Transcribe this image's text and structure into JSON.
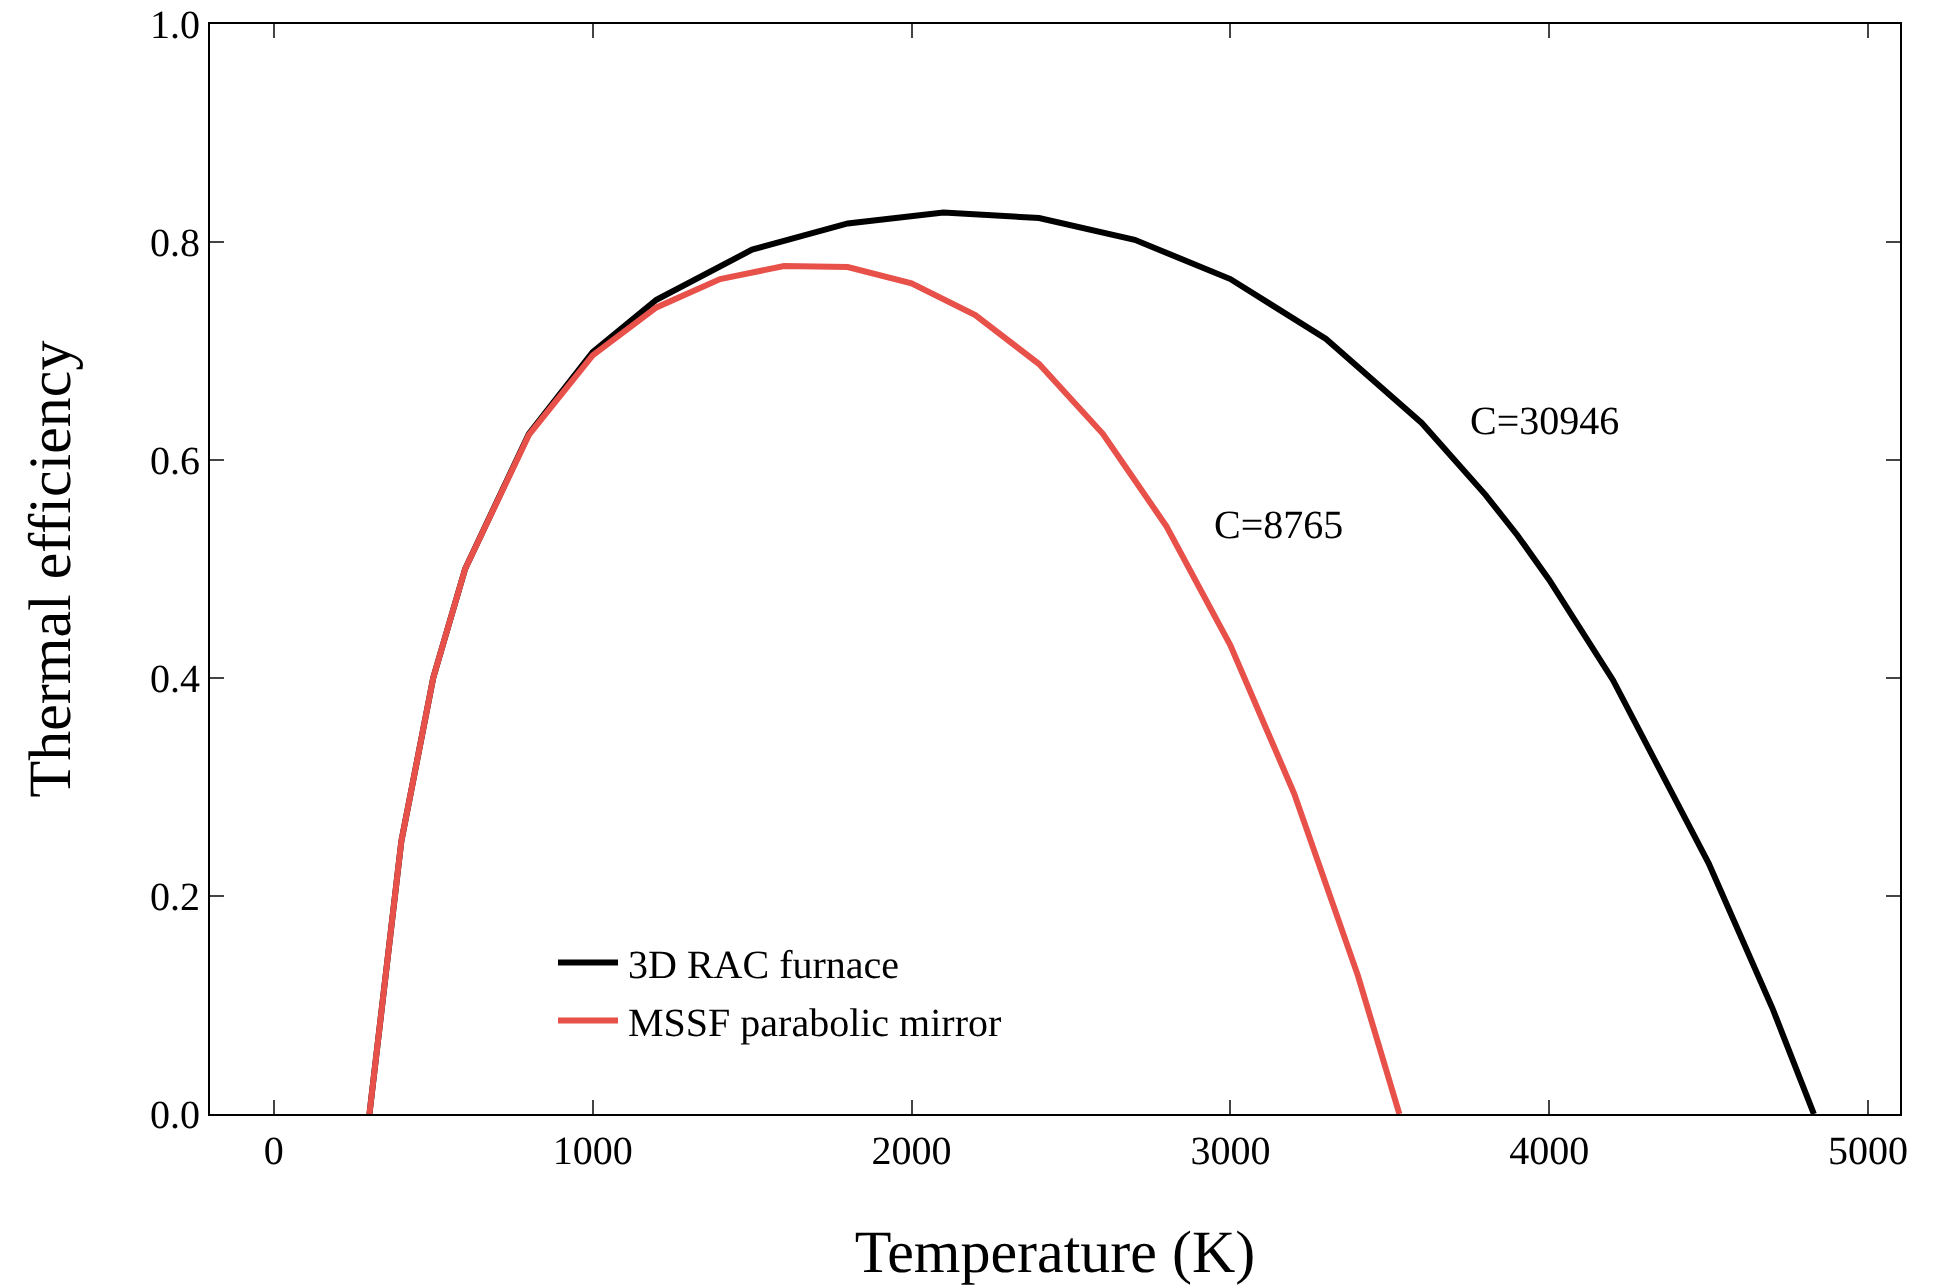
{
  "chart_data": {
    "type": "line",
    "xlabel": "Temperature (K)",
    "ylabel": "Thermal efficiency",
    "series": [
      {
        "name": "3D RAC furnace",
        "color": "#000000",
        "x": [
          300,
          400,
          500,
          600,
          800,
          1000,
          1200,
          1500,
          1800,
          2100,
          2400,
          2700,
          3000,
          3300,
          3600,
          3800,
          3900,
          4000,
          4200,
          4500,
          4700,
          4830
        ],
        "values": [
          0,
          0.25,
          0.4,
          0.5,
          0.624,
          0.699,
          0.747,
          0.793,
          0.817,
          0.827,
          0.822,
          0.802,
          0.766,
          0.711,
          0.634,
          0.568,
          0.531,
          0.49,
          0.398,
          0.23,
          0.097,
          0
        ]
      },
      {
        "name": "MSSF parabolic mirror",
        "color": "#e8504a",
        "x": [
          300,
          400,
          500,
          600,
          800,
          1000,
          1200,
          1400,
          1600,
          1800,
          2000,
          2200,
          2400,
          2600,
          2800,
          3000,
          3200,
          3400,
          3530
        ],
        "values": [
          0,
          0.25,
          0.4,
          0.5,
          0.623,
          0.696,
          0.74,
          0.766,
          0.778,
          0.777,
          0.762,
          0.733,
          0.688,
          0.624,
          0.539,
          0.43,
          0.294,
          0.127,
          0
        ]
      }
    ],
    "annotations": [
      "C=30946",
      "C=8765"
    ],
    "xlim": [
      -200,
      5100
    ],
    "xticks": [
      0,
      1000,
      2000,
      3000,
      4000,
      5000
    ],
    "ylim": [
      0,
      1
    ],
    "yticks": [
      {
        "value": 0,
        "label": "0.0"
      },
      0.2,
      0.4,
      0.6,
      0.8,
      {
        "value": 1,
        "label": "1.0"
      }
    ],
    "grid": false,
    "legend": "bottom left",
    "line_style": "solid",
    "marker": "none"
  }
}
